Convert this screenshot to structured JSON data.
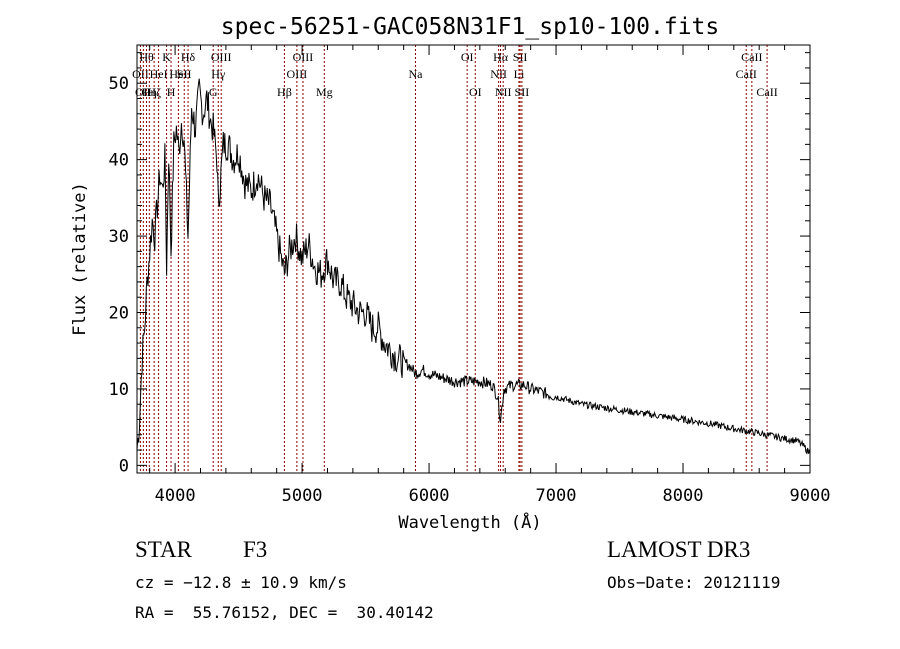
{
  "chart_data": {
    "type": "line",
    "title": "spec-56251-GAC058N31F1_sp10-100.fits",
    "xlabel": "Wavelength (Å)",
    "ylabel": "Flux (relative)",
    "xlim": [
      3700,
      9000
    ],
    "ylim": [
      -1,
      55
    ],
    "xticks": [
      4000,
      5000,
      6000,
      7000,
      8000,
      9000
    ],
    "xtick_labels": [
      "4000",
      "5000",
      "6000",
      "7000",
      "8000",
      "9000"
    ],
    "yticks": [
      0,
      10,
      20,
      30,
      40,
      50
    ],
    "ytick_labels": [
      "0",
      "10",
      "20",
      "30",
      "40",
      "50"
    ],
    "grid": false,
    "series": [
      {
        "name": "spectrum",
        "x": [
          3700,
          3720,
          3740,
          3760,
          3780,
          3800,
          3820,
          3840,
          3860,
          3880,
          3900,
          3920,
          3933,
          3950,
          3968,
          3990,
          4010,
          4030,
          4050,
          4070,
          4102,
          4130,
          4160,
          4190,
          4220,
          4250,
          4280,
          4300,
          4330,
          4340,
          4361,
          4380,
          4420,
          4460,
          4500,
          4550,
          4600,
          4650,
          4700,
          4750,
          4800,
          4861,
          4900,
          4950,
          5000,
          5050,
          5100,
          5150,
          5200,
          5250,
          5300,
          5350,
          5400,
          5450,
          5500,
          5550,
          5600,
          5650,
          5700,
          5750,
          5800,
          5850,
          5893,
          5950,
          6000,
          6100,
          6200,
          6300,
          6400,
          6500,
          6540,
          6563,
          6590,
          6650,
          6700,
          6750,
          6800,
          7000,
          7200,
          7400,
          7600,
          7800,
          8000,
          8200,
          8400,
          8600,
          8800,
          8900,
          8950,
          9000
        ],
        "y": [
          2,
          6,
          14,
          18,
          24,
          28,
          32,
          30,
          34,
          38,
          36,
          40,
          26,
          41,
          28,
          42,
          44,
          41,
          45,
          43,
          30,
          47,
          44,
          49,
          46,
          48,
          45,
          44,
          40,
          34,
          38,
          42,
          42,
          40,
          41,
          37,
          36,
          38,
          35,
          34,
          30,
          25,
          28,
          30,
          27,
          29,
          26,
          25,
          27,
          24,
          24,
          22,
          21,
          20,
          20,
          18,
          18,
          16,
          15,
          14,
          13.5,
          13,
          12,
          12.5,
          12,
          11.5,
          11,
          11,
          11,
          10.5,
          9,
          6,
          10,
          10.5,
          10.5,
          10.5,
          10,
          9,
          8,
          7.5,
          7,
          6.5,
          6,
          5.5,
          4.8,
          4.2,
          3.5,
          3.2,
          2.5,
          1.5
        ]
      }
    ],
    "lines": [
      {
        "x": 3727,
        "label": "OII",
        "row": 2
      },
      {
        "x": 3750,
        "label": "OII",
        "row": 3
      },
      {
        "x": 3775,
        "label": "Hθ",
        "row": 1
      },
      {
        "x": 3797,
        "label": "Hη",
        "row": 3
      },
      {
        "x": 3835,
        "label": "Hζ",
        "row": 3
      },
      {
        "x": 3870,
        "label": "HeI",
        "row": 2
      },
      {
        "x": 3933,
        "label": "K",
        "row": 1
      },
      {
        "x": 3968,
        "label": "H",
        "row": 3
      },
      {
        "x": 4026,
        "label": "HeI",
        "row": 2
      },
      {
        "x": 4072,
        "label": "SII",
        "row": 2
      },
      {
        "x": 4102,
        "label": "Hδ",
        "row": 1
      },
      {
        "x": 4300,
        "label": "G",
        "row": 3
      },
      {
        "x": 4340,
        "label": "Hγ",
        "row": 2
      },
      {
        "x": 4363,
        "label": "OIII",
        "row": 1
      },
      {
        "x": 4861,
        "label": "Hβ",
        "row": 3
      },
      {
        "x": 4959,
        "label": "OIII",
        "row": 2
      },
      {
        "x": 5007,
        "label": "OIII",
        "row": 1
      },
      {
        "x": 5175,
        "label": "Mg",
        "row": 3
      },
      {
        "x": 5893,
        "label": "Na",
        "row": 2
      },
      {
        "x": 6300,
        "label": "OI",
        "row": 1
      },
      {
        "x": 6364,
        "label": "OI",
        "row": 3
      },
      {
        "x": 6548,
        "label": "NII",
        "row": 2
      },
      {
        "x": 6563,
        "label": "Hα",
        "row": 1
      },
      {
        "x": 6584,
        "label": "NII",
        "row": 3
      },
      {
        "x": 6708,
        "label": "Li",
        "row": 2
      },
      {
        "x": 6717,
        "label": "SII",
        "row": 1
      },
      {
        "x": 6731,
        "label": "SII",
        "row": 3
      },
      {
        "x": 8498,
        "label": "CaII",
        "row": 2
      },
      {
        "x": 8542,
        "label": "CaII",
        "row": 1
      },
      {
        "x": 8662,
        "label": "CaII",
        "row": 3
      }
    ],
    "colors": {
      "spectrum": "#000000",
      "lines": "#8b0000",
      "axes": "#000000"
    }
  },
  "info": {
    "object_type": "STAR",
    "subclass": "F3",
    "survey": "LAMOST DR3",
    "redshift": "cz = −12.8 ± 10.9 km/s",
    "obs_date": "Obs−Date: 20121119",
    "coords": "RA =  55.76152, DEC =  30.40142"
  }
}
